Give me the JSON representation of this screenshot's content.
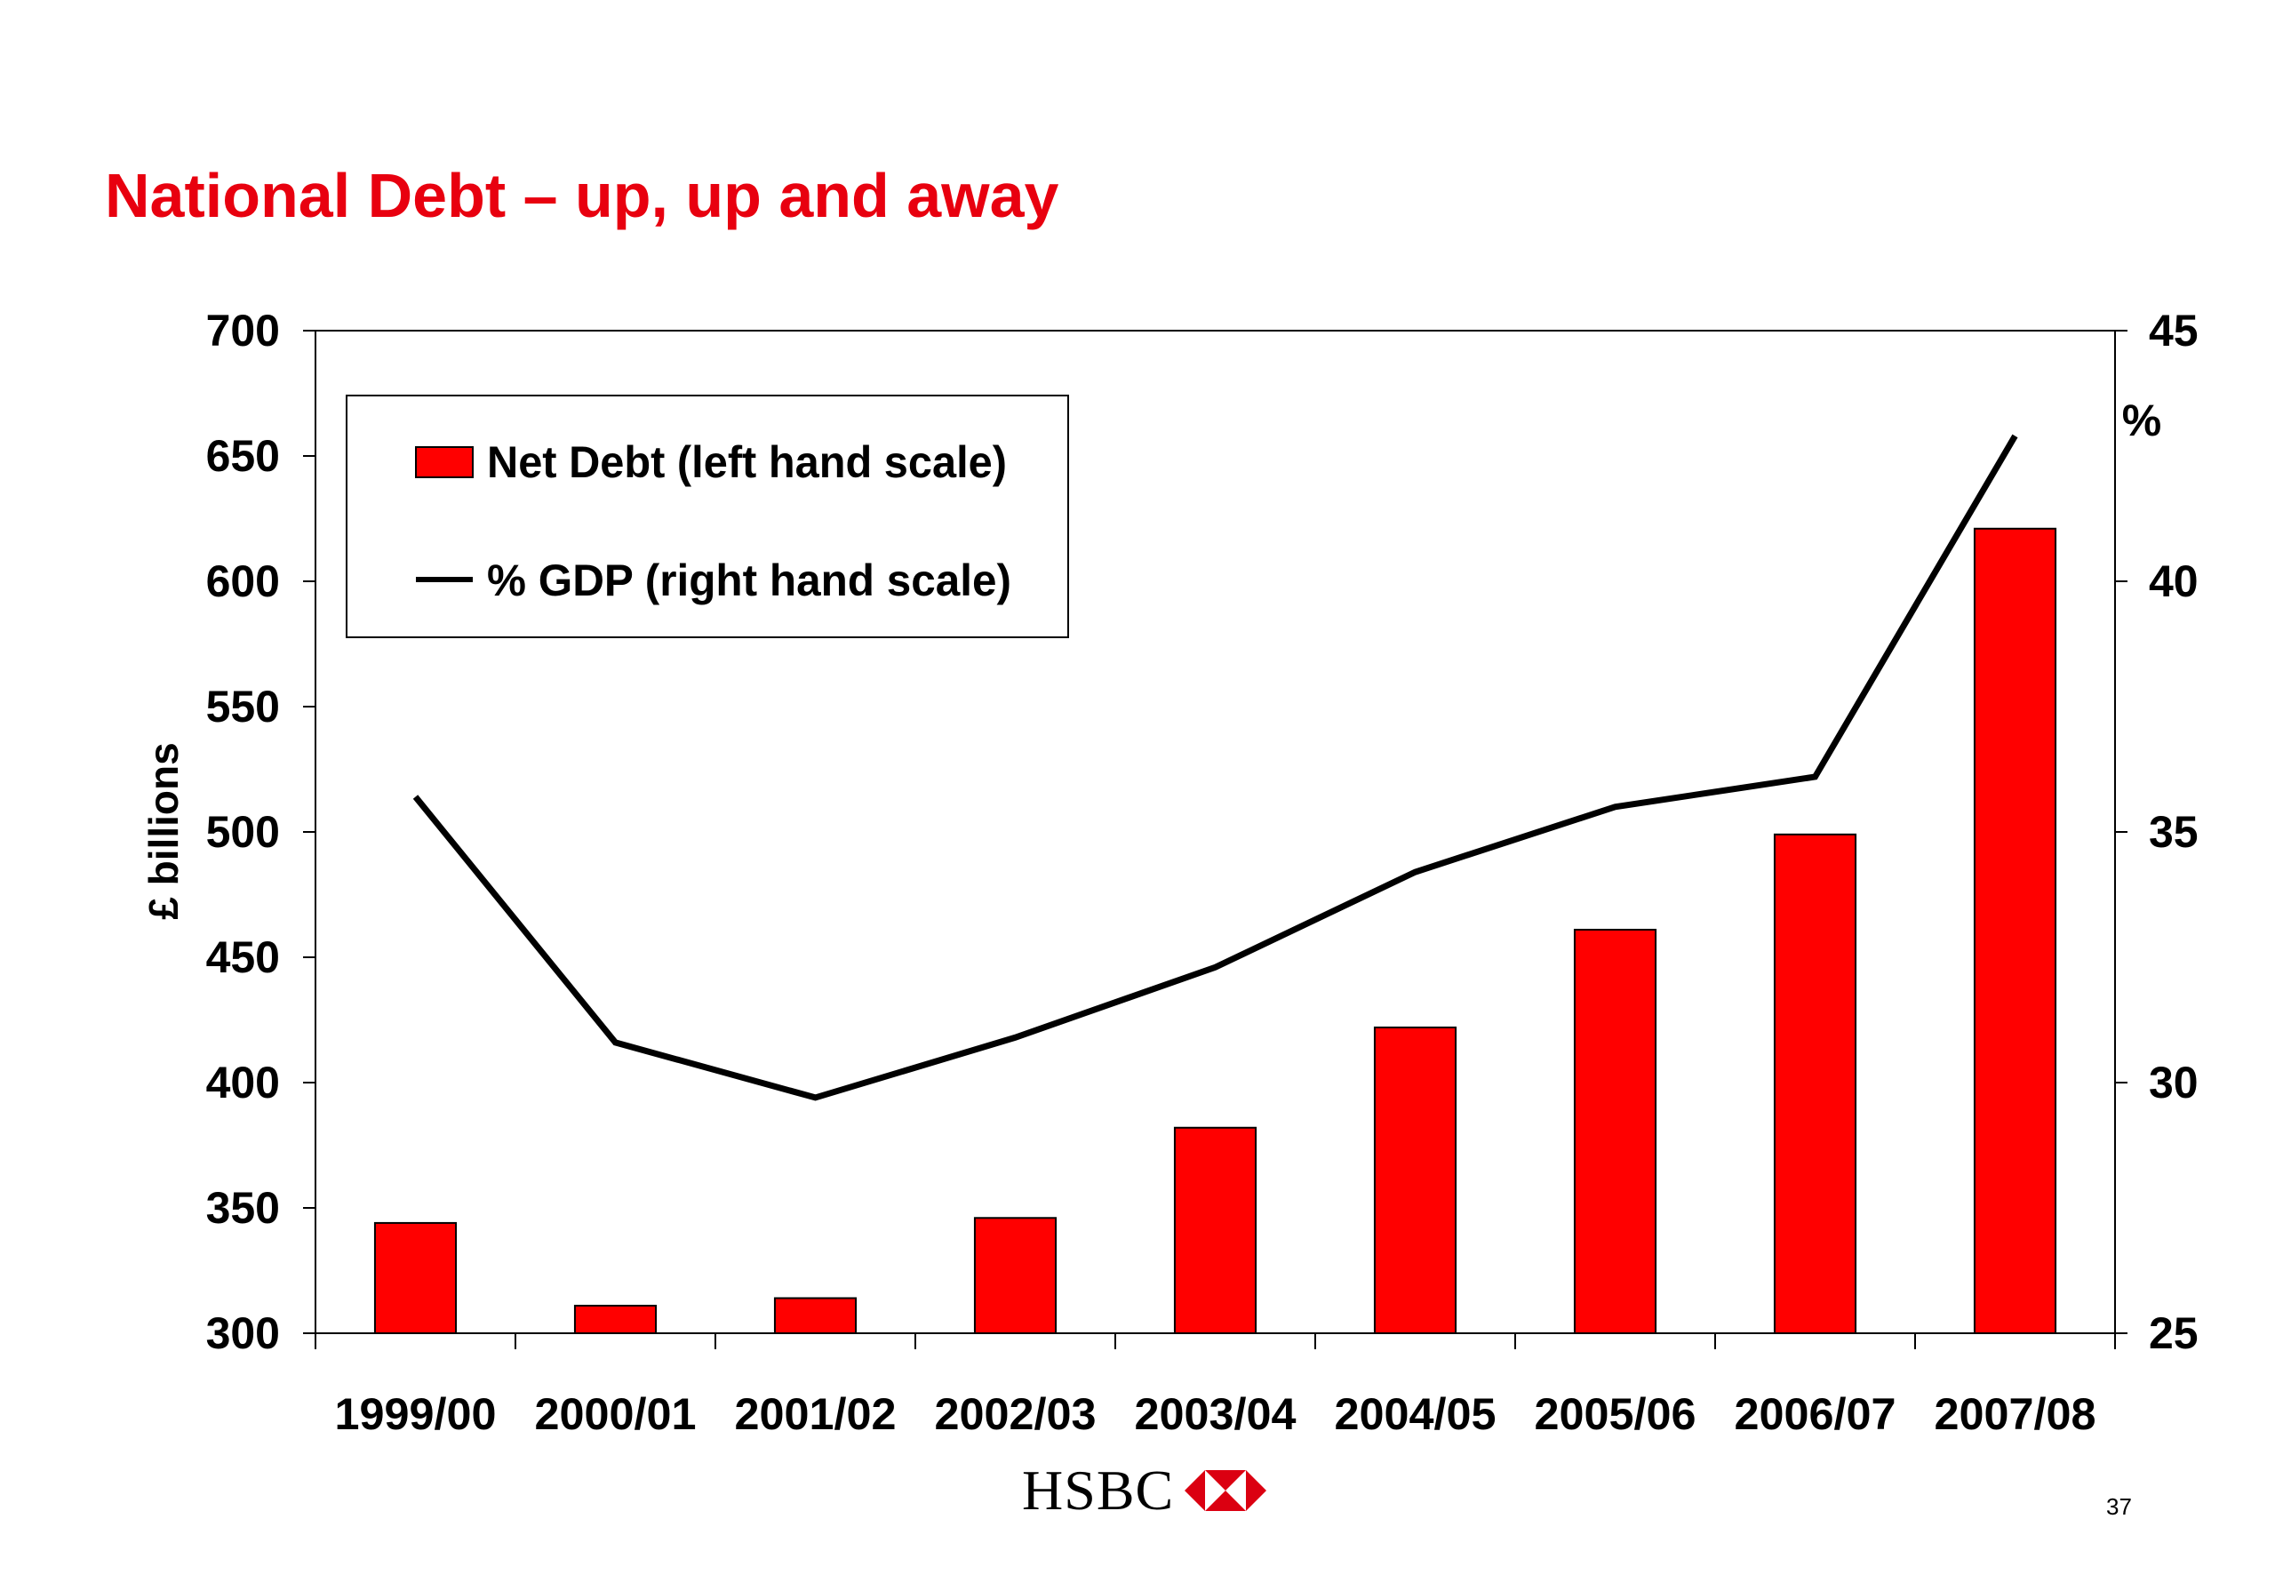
{
  "slide": {
    "title": "National Debt – up, up and away",
    "logo_text": "HSBC",
    "page_number": "37"
  },
  "colors": {
    "title": "#e8000f",
    "bar": "#ff0000",
    "line": "#000000",
    "logo_red": "#db0011"
  },
  "icons": {
    "logo_mark": "hsbc-hexagon-icon"
  },
  "chart_data": {
    "type": "bar",
    "title": "National Debt – up, up and away",
    "categories": [
      "1999/00",
      "2000/01",
      "2001/02",
      "2002/03",
      "2003/04",
      "2004/05",
      "2005/06",
      "2006/07",
      "2007/08"
    ],
    "series": [
      {
        "name": "Net Debt (left hand scale)",
        "type": "bar",
        "axis": "left",
        "values": [
          344,
          311,
          314,
          346,
          382,
          422,
          461,
          499,
          621
        ]
      },
      {
        "name": "% GDP (right hand scale)",
        "type": "line",
        "axis": "right",
        "values": [
          35.7,
          30.8,
          29.7,
          30.9,
          32.3,
          34.2,
          35.5,
          36.1,
          42.9
        ]
      }
    ],
    "ylabel": "£ billions",
    "ylim": [
      300,
      700
    ],
    "yticks": [
      "300",
      "350",
      "400",
      "450",
      "500",
      "550",
      "600",
      "650",
      "700"
    ],
    "y2label": "%",
    "y2lim": [
      25,
      45
    ],
    "y2ticks": [
      "25",
      "30",
      "35",
      "40",
      "45"
    ],
    "legend_position": "top-left",
    "grid": false
  }
}
